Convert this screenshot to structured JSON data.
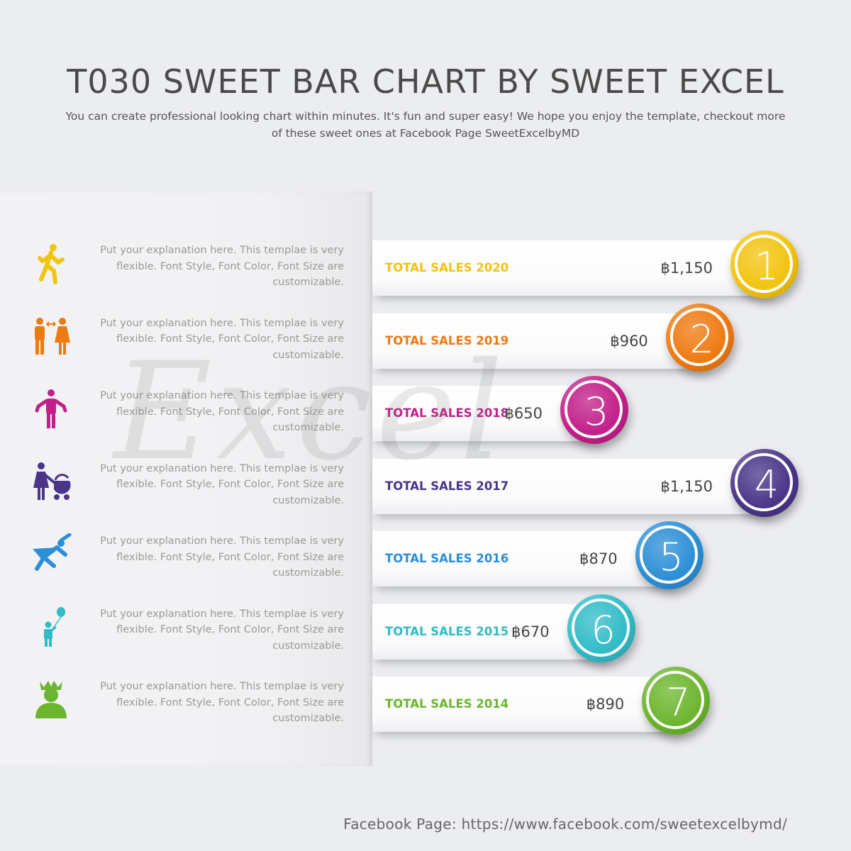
{
  "title": "T030 SWEET BAR CHART BY SWEET EXCEL",
  "subtitle": "You can create professional looking chart within minutes. It's fun and super easy! We hope you enjoy the template, checkout more of these sweet ones at Facebook Page SweetExcelbyMD",
  "watermark": "Excel",
  "footer": "Facebook Page: https://www.facebook.com/sweetexcelbymd/",
  "chart_data": {
    "type": "bar",
    "orientation": "horizontal",
    "categories": [
      "TOTAL SALES 2020",
      "TOTAL SALES 2019",
      "TOTAL SALES 2018",
      "TOTAL SALES 2017",
      "TOTAL SALES 2016",
      "TOTAL SALES 2015",
      "TOTAL SALES 2014"
    ],
    "values": [
      1150,
      960,
      650,
      1150,
      870,
      670,
      890
    ],
    "value_labels": [
      "฿1,150",
      "฿960",
      "฿650",
      "฿1,150",
      "฿870",
      "฿670",
      "฿890"
    ],
    "ranks": [
      "1",
      "2",
      "3",
      "4",
      "5",
      "6",
      "7"
    ],
    "colors": [
      "#f2c40f",
      "#ee7a12",
      "#c21f8a",
      "#4a3589",
      "#2c8fd6",
      "#31bcc7",
      "#6cb52e"
    ],
    "descriptions": [
      "Put your explanation here.  This templae is very flexible. Font Style, Font Color, Font Size are customizable.",
      "Put your explanation here.  This templae is very flexible. Font Style, Font Color, Font Size are customizable.",
      "Put your explanation here.  This templae is very flexible. Font Style, Font Color, Font Size are customizable.",
      "Put your explanation here.  This templae is very flexible. Font Style, Font Color, Font Size are customizable.",
      "Put your explanation here.  This templae is very flexible. Font Style, Font Color, Font Size are customizable.",
      "Put your explanation here.  This templae is very flexible. Font Style, Font Color, Font Size are customizable.",
      "Put your explanation here.  This templae is very flexible. Font Style, Font Color, Font Size are customizable."
    ],
    "icons": [
      "walking-person-icon",
      "couple-icon",
      "shrugging-person-icon",
      "mother-with-stroller-icon",
      "superhero-icon",
      "child-with-balloon-icon",
      "queen-icon"
    ]
  }
}
